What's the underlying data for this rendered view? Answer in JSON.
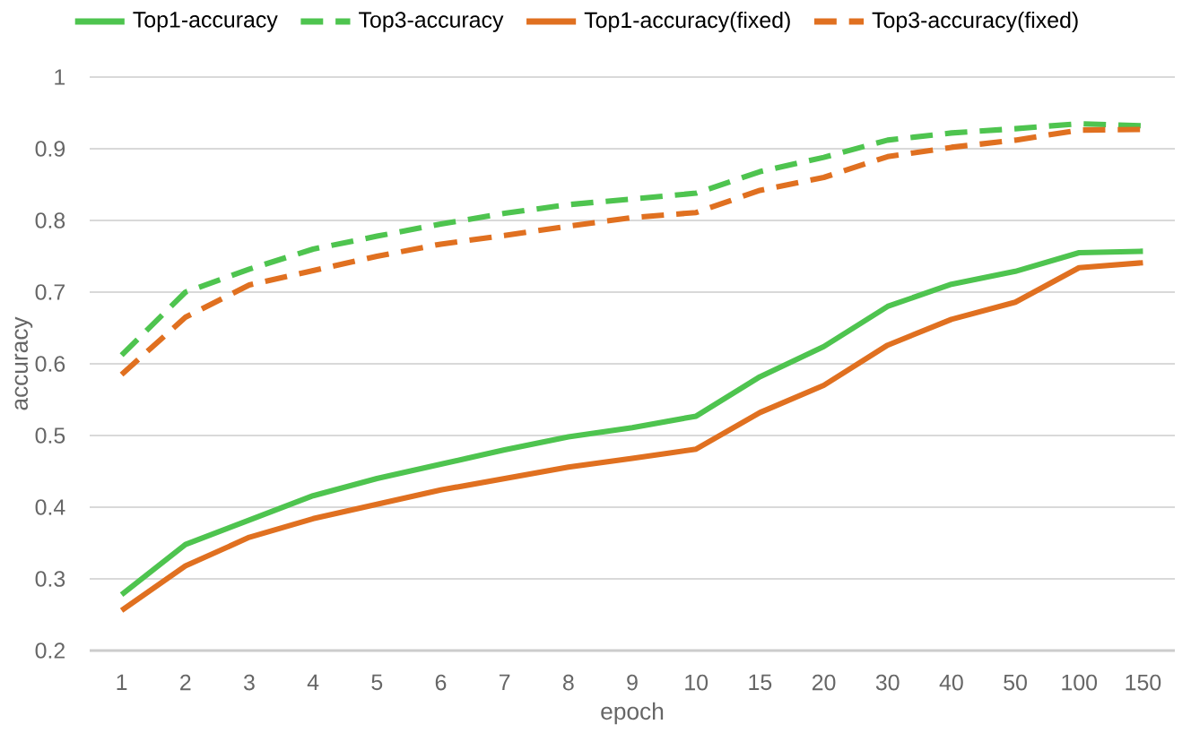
{
  "chart_data": {
    "type": "line",
    "xlabel": "epoch",
    "ylabel": "accuracy",
    "categories": [
      "1",
      "2",
      "3",
      "4",
      "5",
      "6",
      "7",
      "8",
      "9",
      "10",
      "15",
      "20",
      "30",
      "40",
      "50",
      "100",
      "150"
    ],
    "series": [
      {
        "name": "Top1-accuracy",
        "color": "#4ec44f",
        "line_style": "solid",
        "values": [
          0.278,
          0.348,
          0.382,
          0.416,
          0.44,
          0.46,
          0.48,
          0.498,
          0.511,
          0.527,
          0.582,
          0.624,
          0.68,
          0.711,
          0.729,
          0.755,
          0.757
        ]
      },
      {
        "name": "Top3-accuracy",
        "color": "#4ec44f",
        "line_style": "dashed",
        "values": [
          0.612,
          0.7,
          0.732,
          0.76,
          0.778,
          0.795,
          0.81,
          0.822,
          0.83,
          0.838,
          0.868,
          0.888,
          0.912,
          0.922,
          0.928,
          0.935,
          0.932
        ]
      },
      {
        "name": "Top1-accuracy(fixed)",
        "color": "#e07020",
        "line_style": "solid",
        "values": [
          0.256,
          0.318,
          0.358,
          0.384,
          0.404,
          0.424,
          0.44,
          0.456,
          0.468,
          0.481,
          0.532,
          0.57,
          0.626,
          0.662,
          0.686,
          0.734,
          0.741
        ]
      },
      {
        "name": "Top3-accuracy(fixed)",
        "color": "#e07020",
        "line_style": "dashed",
        "values": [
          0.585,
          0.665,
          0.71,
          0.73,
          0.75,
          0.767,
          0.779,
          0.792,
          0.804,
          0.811,
          0.842,
          0.86,
          0.889,
          0.902,
          0.912,
          0.926,
          0.927
        ]
      }
    ],
    "ylim": [
      0.2,
      1
    ],
    "yticks": [
      0.2,
      0.3,
      0.4,
      0.5,
      0.6,
      0.7,
      0.8,
      0.9,
      1
    ],
    "grid": "y",
    "legend": "top",
    "marker": "none"
  }
}
